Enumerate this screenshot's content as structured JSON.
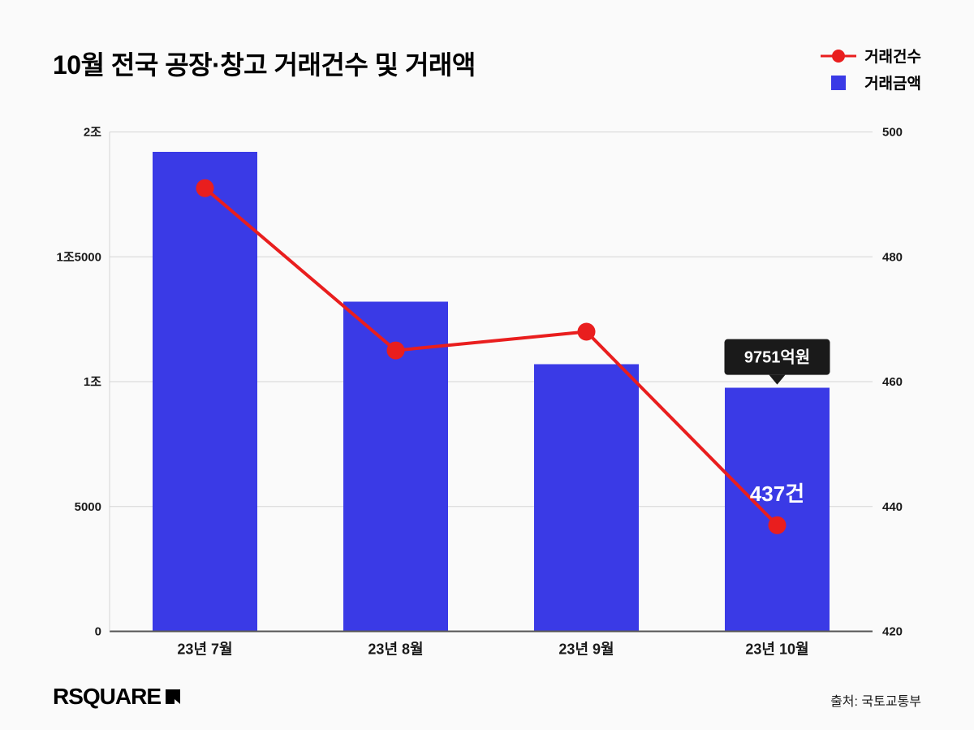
{
  "title": "10월 전국 공장·창고 거래건수 및 거래액",
  "legend": {
    "series1": {
      "label": "거래건수",
      "color": "#e91e1e"
    },
    "series2": {
      "label": "거래금액",
      "color": "#3a3ae6"
    }
  },
  "chart": {
    "type": "bar+line",
    "background": "#fafafa",
    "grid_color": "#d4d4d4",
    "axis_line_color": "#555555",
    "categories": [
      "23년 7월",
      "23년 8월",
      "23년 9월",
      "23년 10월"
    ],
    "bars": {
      "label": "거래금액",
      "color": "#3a3ae6",
      "values": [
        19200,
        13200,
        10700,
        9751
      ],
      "bar_width_ratio": 0.55,
      "ylim": [
        0,
        20000
      ],
      "yticks": [
        0,
        5000,
        10000,
        15000,
        20000
      ],
      "ytick_labels": [
        "0",
        "5000",
        "1조",
        "1조5000",
        "2조"
      ]
    },
    "line": {
      "label": "거래건수",
      "color": "#e91e1e",
      "values": [
        491,
        465,
        468,
        437
      ],
      "marker_radius": 11,
      "ylim": [
        420,
        500
      ],
      "yticks": [
        420,
        440,
        460,
        480,
        500
      ]
    },
    "annotations": {
      "tooltip": {
        "text": "9751억원",
        "category_index": 3
      },
      "point_label": {
        "text": "437건",
        "category_index": 3
      }
    }
  },
  "logo": "RSQUARE",
  "source": "출처: 국토교통부"
}
